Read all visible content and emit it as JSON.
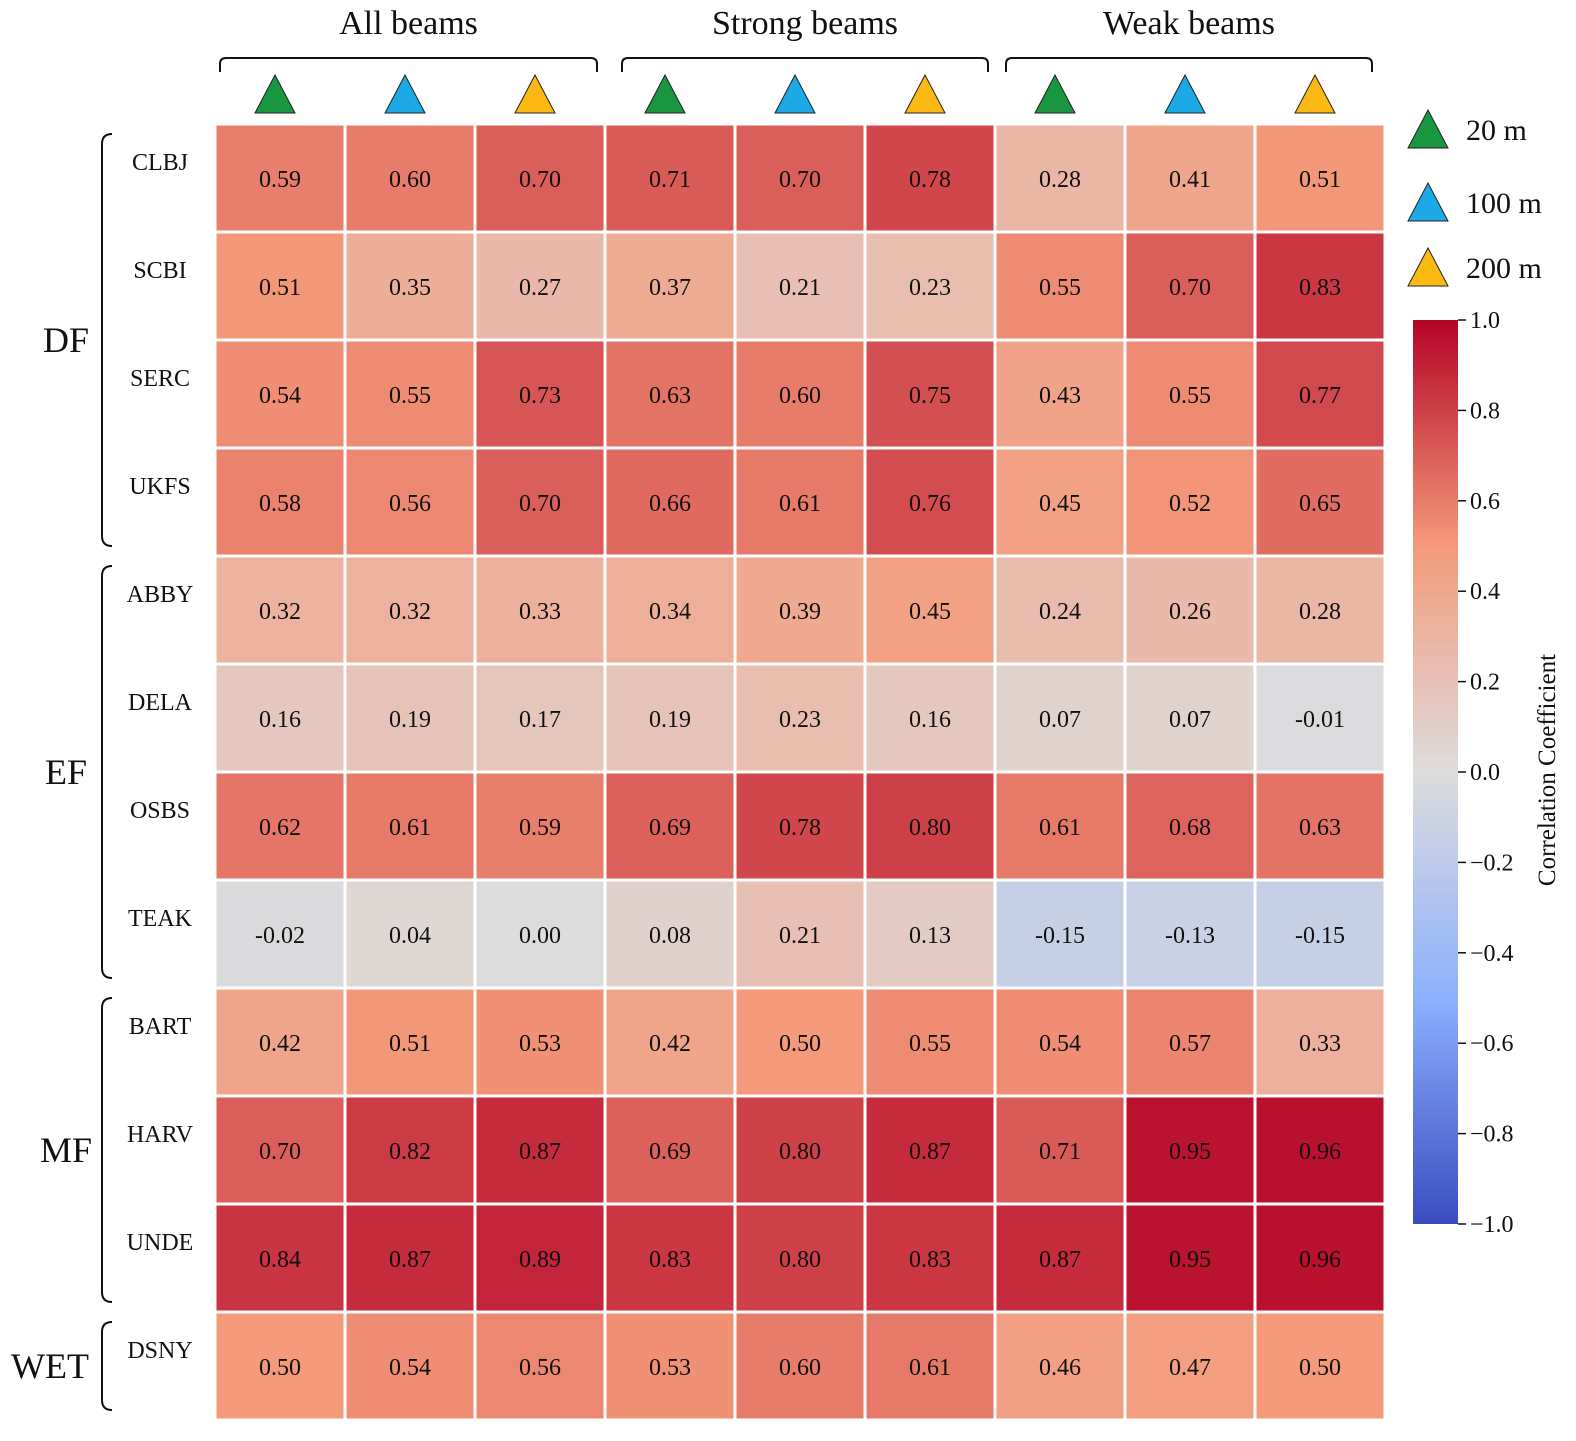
{
  "chart_data": {
    "type": "heatmap",
    "title": "",
    "column_groups": [
      "All beams",
      "Strong beams",
      "Weak beams"
    ],
    "column_scales": [
      "20 m",
      "100 m",
      "200 m"
    ],
    "legend": [
      {
        "label": "20 m",
        "color": "#1a9641"
      },
      {
        "label": "100 m",
        "color": "#1ca9e6"
      },
      {
        "label": "200 m",
        "color": "#fdb913"
      }
    ],
    "row_groups": [
      {
        "label": "DF",
        "rows": [
          "CLBJ",
          "SCBI",
          "SERC",
          "UKFS"
        ]
      },
      {
        "label": "EF",
        "rows": [
          "ABBY",
          "DELA",
          "OSBS",
          "TEAK"
        ]
      },
      {
        "label": "MF",
        "rows": [
          "BART",
          "HARV",
          "UNDE"
        ]
      },
      {
        "label": "WET",
        "rows": [
          "DSNY"
        ]
      }
    ],
    "rows": [
      "CLBJ",
      "SCBI",
      "SERC",
      "UKFS",
      "ABBY",
      "DELA",
      "OSBS",
      "TEAK",
      "BART",
      "HARV",
      "UNDE",
      "DSNY"
    ],
    "values": [
      [
        "0.59",
        "0.60",
        "0.70",
        "0.71",
        "0.70",
        "0.78",
        "0.28",
        "0.41",
        "0.51"
      ],
      [
        "0.51",
        "0.35",
        "0.27",
        "0.37",
        "0.21",
        "0.23",
        "0.55",
        "0.70",
        "0.83"
      ],
      [
        "0.54",
        "0.55",
        "0.73",
        "0.63",
        "0.60",
        "0.75",
        "0.43",
        "0.55",
        "0.77"
      ],
      [
        "0.58",
        "0.56",
        "0.70",
        "0.66",
        "0.61",
        "0.76",
        "0.45",
        "0.52",
        "0.65"
      ],
      [
        "0.32",
        "0.32",
        "0.33",
        "0.34",
        "0.39",
        "0.45",
        "0.24",
        "0.26",
        "0.28"
      ],
      [
        "0.16",
        "0.19",
        "0.17",
        "0.19",
        "0.23",
        "0.16",
        "0.07",
        "0.07",
        "-0.01"
      ],
      [
        "0.62",
        "0.61",
        "0.59",
        "0.69",
        "0.78",
        "0.80",
        "0.61",
        "0.68",
        "0.63"
      ],
      [
        "-0.02",
        "0.04",
        "0.00",
        "0.08",
        "0.21",
        "0.13",
        "-0.15",
        "-0.13",
        "-0.15"
      ],
      [
        "0.42",
        "0.51",
        "0.53",
        "0.42",
        "0.50",
        "0.55",
        "0.54",
        "0.57",
        "0.33"
      ],
      [
        "0.70",
        "0.82",
        "0.87",
        "0.69",
        "0.80",
        "0.87",
        "0.71",
        "0.95",
        "0.96"
      ],
      [
        "0.84",
        "0.87",
        "0.89",
        "0.83",
        "0.80",
        "0.83",
        "0.87",
        "0.95",
        "0.96"
      ],
      [
        "0.50",
        "0.54",
        "0.56",
        "0.53",
        "0.60",
        "0.61",
        "0.46",
        "0.47",
        "0.50"
      ]
    ],
    "colorbar": {
      "label": "Correlation Coefficient",
      "range": [
        -1.0,
        1.0
      ],
      "ticks": [
        {
          "value": 1.0,
          "label": "1.0"
        },
        {
          "value": 0.8,
          "label": "0.8"
        },
        {
          "value": 0.6,
          "label": "0.6"
        },
        {
          "value": 0.4,
          "label": "0.4"
        },
        {
          "value": 0.2,
          "label": "0.2"
        },
        {
          "value": 0.0,
          "label": "0.0"
        },
        {
          "value": -0.2,
          "label": "−0.2"
        },
        {
          "value": -0.4,
          "label": "−0.4"
        },
        {
          "value": -0.6,
          "label": "−0.6"
        },
        {
          "value": -0.8,
          "label": "−0.8"
        },
        {
          "value": -1.0,
          "label": "−1.0"
        }
      ],
      "colormap": "coolwarm",
      "stops": [
        {
          "v": -1.0,
          "c": "#3b4cc0"
        },
        {
          "v": -0.5,
          "c": "#8db0fe"
        },
        {
          "v": 0.0,
          "c": "#dddcdc"
        },
        {
          "v": 0.5,
          "c": "#f49a7b"
        },
        {
          "v": 1.0,
          "c": "#b40426"
        }
      ]
    }
  }
}
